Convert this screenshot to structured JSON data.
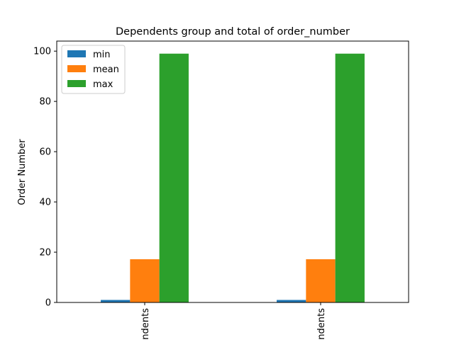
{
  "chart_data": {
    "type": "bar",
    "title": "Dependents group and total of order_number",
    "xlabel": "",
    "ylabel": "Order Number",
    "categories": [
      "ndents",
      "ndents"
    ],
    "series": [
      {
        "name": "min",
        "color": "#1f77b4",
        "values": [
          1,
          1
        ]
      },
      {
        "name": "mean",
        "color": "#ff7f0e",
        "values": [
          17.2,
          17.2
        ]
      },
      {
        "name": "max",
        "color": "#2ca02c",
        "values": [
          99,
          99
        ]
      }
    ],
    "ylim": [
      0,
      104
    ],
    "yticks": [
      0,
      20,
      40,
      60,
      80,
      100
    ],
    "grid": false,
    "legend_position": "upper-left"
  }
}
